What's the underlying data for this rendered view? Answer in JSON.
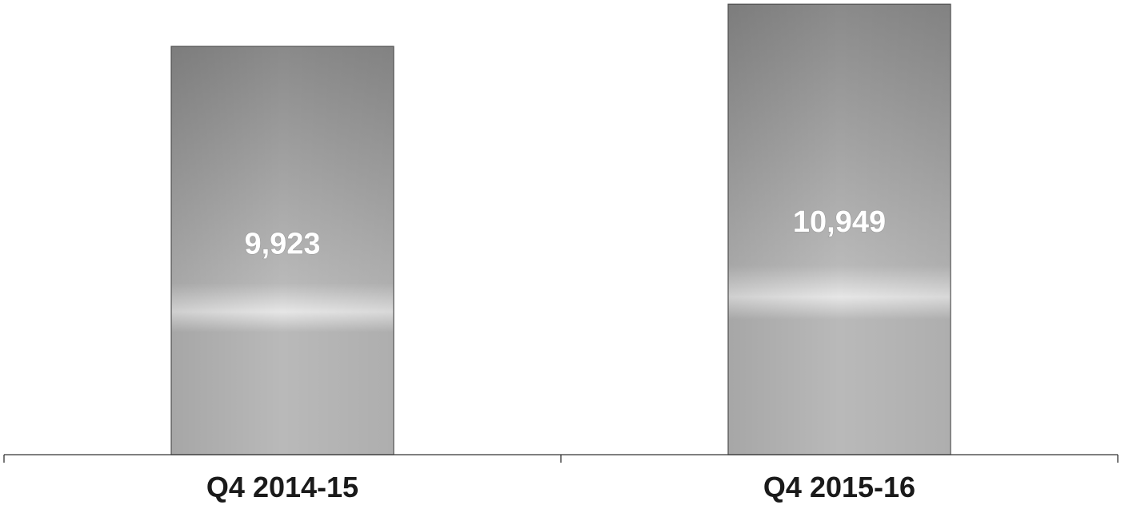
{
  "chart_data": {
    "type": "bar",
    "categories": [
      "Q4 2014-15",
      "Q4 2015-16"
    ],
    "values": [
      9923,
      10949
    ],
    "value_labels": [
      "9,923",
      "10,949"
    ],
    "title": "",
    "xlabel": "",
    "ylabel": "",
    "ylim": [
      0,
      11050
    ],
    "grid": false,
    "legend": "none",
    "colors": {
      "bar_dark": "#8a8a8a",
      "bar_mid": "#b9b9b9",
      "bar_light": "#e6e6e6",
      "bar_border": "#555555",
      "axis": "#333333"
    }
  }
}
